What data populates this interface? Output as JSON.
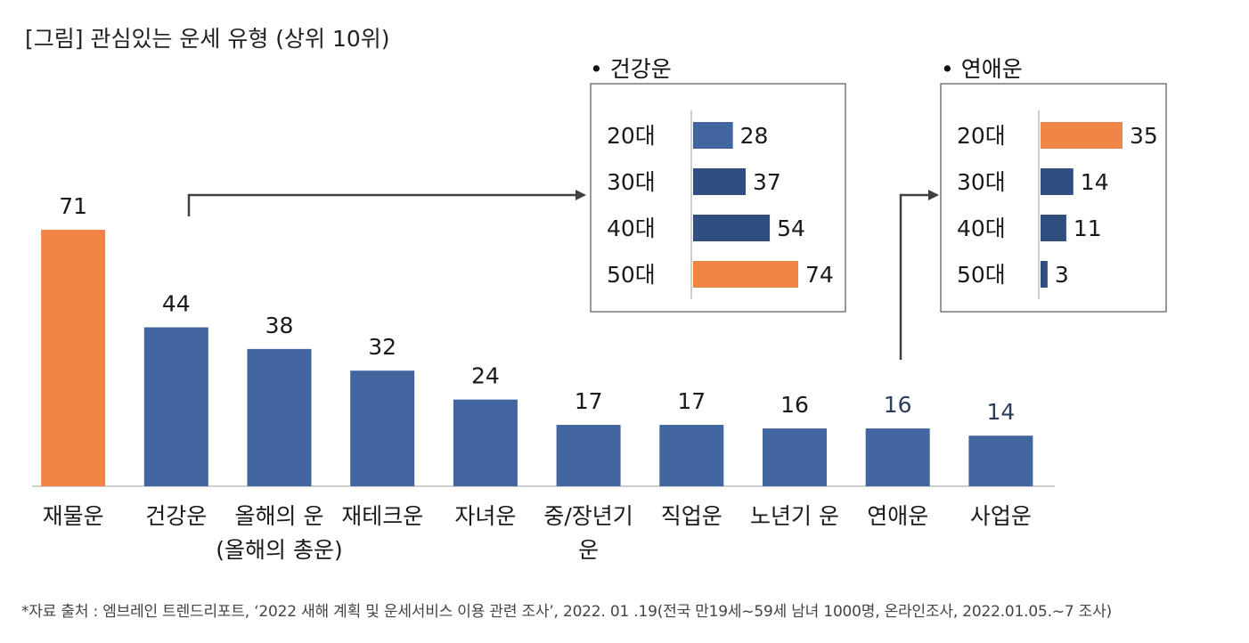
{
  "figure_title": "[그림] 관심있는 운세 유형 (상위 10위)",
  "source_note": "*자료 출처 : 엠브레인 트렌드리포트, ‘2022 새해 계획 및 운세서비스 이용 관련 조사’, 2022. 01 .19(전국 만19세~59세 남녀 1000명, 온라인조사, 2022.01.05.~7 조사)",
  "colors": {
    "blue": "#41659e",
    "dark_blue": "#2f4f80",
    "orange": "#ef8648",
    "axis": "#bfbfbf",
    "text": "#1a1a1a"
  },
  "chart_data": [
    {
      "id": "main",
      "type": "bar",
      "title": "관심있는 운세 유형 (상위 10위)",
      "categories": [
        "재물운",
        "건강운",
        "올해의 운\n(올해의 총운)",
        "재테크운",
        "자녀운",
        "중/장년기\n운",
        "직업운",
        "노년기 운",
        "연애운",
        "사업운"
      ],
      "values": [
        71,
        44,
        38,
        32,
        24,
        17,
        17,
        16,
        16,
        14
      ],
      "highlight": [
        0
      ],
      "ylim": [
        0,
        71
      ],
      "grid": false
    },
    {
      "id": "health",
      "type": "bar",
      "orientation": "horizontal",
      "title": "• 건강운",
      "categories": [
        "20대",
        "30대",
        "40대",
        "50대"
      ],
      "values": [
        28,
        37,
        54,
        74
      ],
      "highlight": [
        3
      ],
      "xlim": [
        0,
        74
      ]
    },
    {
      "id": "love",
      "type": "bar",
      "orientation": "horizontal",
      "title": "• 연애운",
      "categories": [
        "20대",
        "30대",
        "40대",
        "50대"
      ],
      "values": [
        35,
        14,
        11,
        3
      ],
      "highlight": [
        0
      ],
      "xlim": [
        0,
        35
      ]
    }
  ]
}
